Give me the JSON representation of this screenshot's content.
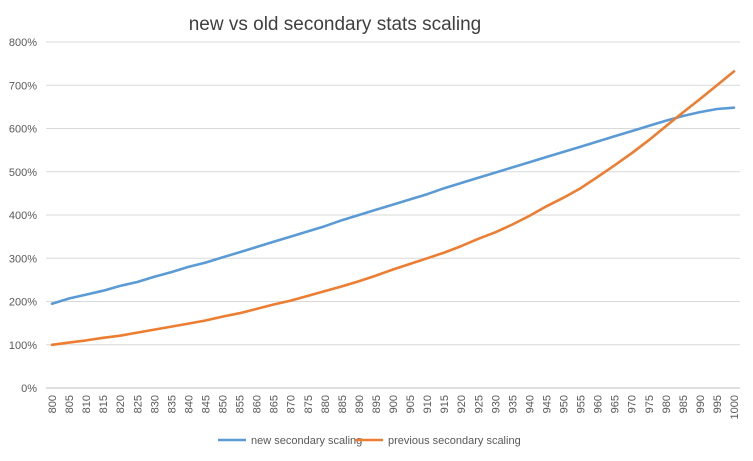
{
  "chart_data": {
    "type": "line",
    "title": "new vs old secondary stats scaling",
    "xlabel": "",
    "ylabel": "",
    "ylim": [
      0,
      800
    ],
    "y_ticks": [
      "0%",
      "100%",
      "200%",
      "300%",
      "400%",
      "500%",
      "600%",
      "700%",
      "800%"
    ],
    "y_unit": "%",
    "grid": true,
    "legend_position": "bottom",
    "categories": [
      "800",
      "805",
      "810",
      "815",
      "820",
      "825",
      "830",
      "835",
      "840",
      "845",
      "850",
      "855",
      "860",
      "865",
      "870",
      "875",
      "880",
      "885",
      "890",
      "895",
      "900",
      "905",
      "910",
      "915",
      "920",
      "925",
      "930",
      "935",
      "940",
      "945",
      "950",
      "955",
      "960",
      "965",
      "970",
      "975",
      "980",
      "985",
      "990",
      "995",
      "1000"
    ],
    "series": [
      {
        "name": "new secondary scaling",
        "color": "#5b9bd5",
        "values": [
          195,
          207,
          216,
          225,
          236,
          245,
          257,
          268,
          280,
          290,
          302,
          314,
          326,
          338,
          350,
          362,
          374,
          388,
          400,
          412,
          424,
          436,
          448,
          462,
          474,
          486,
          498,
          510,
          522,
          534,
          546,
          558,
          570,
          582,
          594,
          606,
          618,
          629,
          638,
          645,
          648
        ]
      },
      {
        "name": "previous secondary scaling",
        "color": "#ed7d31",
        "values": [
          100,
          105,
          110,
          116,
          121,
          128,
          135,
          142,
          149,
          156,
          165,
          173,
          183,
          193,
          202,
          213,
          224,
          235,
          247,
          260,
          274,
          287,
          300,
          313,
          328,
          345,
          360,
          378,
          398,
          420,
          440,
          462,
          488,
          515,
          543,
          573,
          605,
          637,
          668,
          700,
          732
        ]
      }
    ]
  }
}
